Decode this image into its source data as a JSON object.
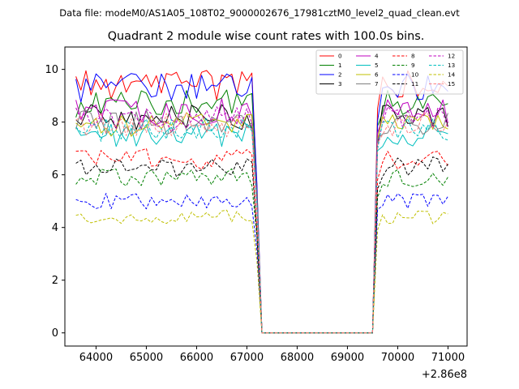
{
  "figure": {
    "suptitle": "Data file: modeM0/AS1A05_108T02_9000002676_17981cztM0_level2_quad_clean.evt"
  },
  "chart_data": {
    "type": "line",
    "title": "Quadrant 2 module wise count rates with 100.0s bins.",
    "xlabel": "",
    "ylabel": "",
    "x_offset_label": "+2.86e8",
    "xlim": [
      63380,
      71380
    ],
    "ylim": [
      -0.5,
      10.85
    ],
    "xticks": [
      64000,
      65000,
      66000,
      67000,
      68000,
      69000,
      70000,
      71000
    ],
    "xtick_labels": [
      "64000",
      "65000",
      "66000",
      "67000",
      "68000",
      "69000",
      "70000",
      "71000"
    ],
    "yticks": [
      0,
      2,
      4,
      6,
      8,
      10
    ],
    "ytick_labels": [
      "0",
      "2",
      "4",
      "6",
      "8",
      "10"
    ],
    "x_start": 63600,
    "bin": 100,
    "segments": [
      {
        "from": 63600,
        "to": 67100,
        "state": "on"
      },
      {
        "from": 67200,
        "to": 67200,
        "state": "drop",
        "fraction": 0.62
      },
      {
        "from": 67300,
        "to": 69500,
        "state": "off"
      },
      {
        "from": 69600,
        "to": 69600,
        "state": "rise",
        "fraction": 0.9
      },
      {
        "from": 69700,
        "to": 71000,
        "state": "on"
      }
    ],
    "legend": {
      "position": "top-right",
      "ncol": 4
    },
    "series": [
      {
        "name": "0",
        "color": "#ff0000",
        "style": "solid",
        "level": 9.4
      },
      {
        "name": "1",
        "color": "#008000",
        "style": "solid",
        "level": 8.7
      },
      {
        "name": "2",
        "color": "#0000ff",
        "style": "solid",
        "level": 9.3
      },
      {
        "name": "3",
        "color": "#000000",
        "style": "solid",
        "level": 8.2
      },
      {
        "name": "4",
        "color": "#bf00bf",
        "style": "solid",
        "level": 8.4
      },
      {
        "name": "5",
        "color": "#00bfbf",
        "style": "solid",
        "level": 7.5
      },
      {
        "name": "6",
        "color": "#bfbf00",
        "style": "solid",
        "level": 7.9
      },
      {
        "name": "7",
        "color": "#808080",
        "style": "solid",
        "level": 8.0
      },
      {
        "name": "8",
        "color": "#ff0000",
        "style": "dashed",
        "level": 6.6
      },
      {
        "name": "9",
        "color": "#008000",
        "style": "dashed",
        "level": 5.9
      },
      {
        "name": "10",
        "color": "#0000ff",
        "style": "dashed",
        "level": 5.0
      },
      {
        "name": "11",
        "color": "#000000",
        "style": "dashed",
        "level": 6.3
      },
      {
        "name": "12",
        "color": "#bf00bf",
        "style": "dashed",
        "level": 8.1
      },
      {
        "name": "13",
        "color": "#00bfbf",
        "style": "dashed",
        "level": 7.7
      },
      {
        "name": "14",
        "color": "#bfbf00",
        "style": "dashed",
        "level": 4.4
      },
      {
        "name": "15",
        "color": "#ff8080",
        "style": "dashed",
        "level": 7.9
      }
    ]
  }
}
